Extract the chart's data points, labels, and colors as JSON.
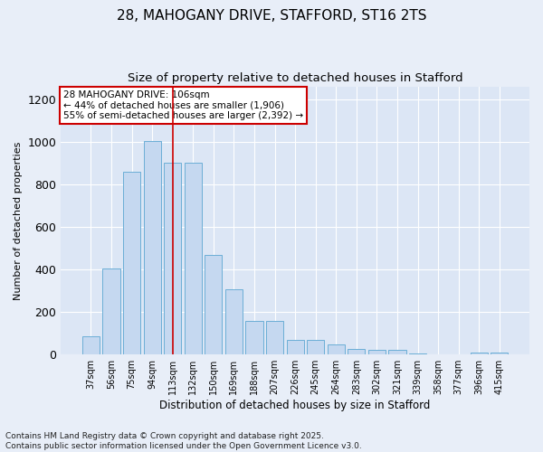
{
  "title": "28, MAHOGANY DRIVE, STAFFORD, ST16 2TS",
  "subtitle": "Size of property relative to detached houses in Stafford",
  "xlabel": "Distribution of detached houses by size in Stafford",
  "ylabel": "Number of detached properties",
  "categories": [
    "37sqm",
    "56sqm",
    "75sqm",
    "94sqm",
    "113sqm",
    "132sqm",
    "150sqm",
    "169sqm",
    "188sqm",
    "207sqm",
    "226sqm",
    "245sqm",
    "264sqm",
    "283sqm",
    "302sqm",
    "321sqm",
    "339sqm",
    "358sqm",
    "377sqm",
    "396sqm",
    "415sqm"
  ],
  "values": [
    85,
    405,
    860,
    1005,
    900,
    900,
    470,
    305,
    160,
    160,
    70,
    70,
    48,
    28,
    20,
    20,
    5,
    0,
    0,
    10,
    10
  ],
  "bar_color": "#c5d8f0",
  "bar_edge_color": "#6baed6",
  "annotation_text": "28 MAHOGANY DRIVE: 106sqm\n← 44% of detached houses are smaller (1,906)\n55% of semi-detached houses are larger (2,392) →",
  "annotation_box_color": "#ffffff",
  "annotation_box_edge_color": "#cc0000",
  "red_line_x": "113sqm",
  "red_line_color": "#cc0000",
  "footnote": "Contains HM Land Registry data © Crown copyright and database right 2025.\nContains public sector information licensed under the Open Government Licence v3.0.",
  "bg_color": "#e8eef8",
  "plot_bg_color": "#dce6f5",
  "ylim": [
    0,
    1260
  ],
  "grid_color": "#ffffff",
  "title_fontsize": 11,
  "subtitle_fontsize": 9.5,
  "tick_fontsize": 7,
  "ylabel_fontsize": 8,
  "xlabel_fontsize": 8.5,
  "footnote_fontsize": 6.5,
  "annot_fontsize": 7.5
}
